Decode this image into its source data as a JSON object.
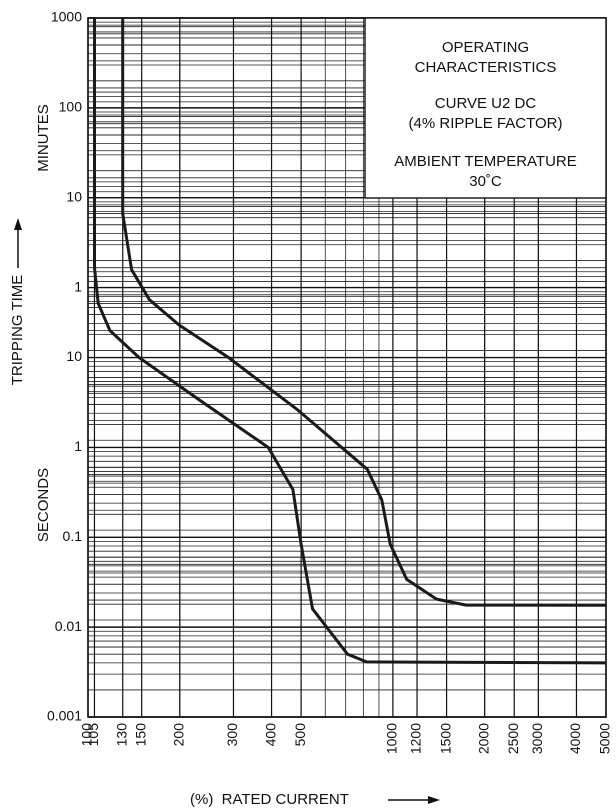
{
  "chart_data": {
    "type": "line",
    "x_log": true,
    "y_log": true,
    "grid": true,
    "minor_grid": true,
    "xlim": [
      100,
      5000
    ],
    "xticks": [
      100,
      105,
      130,
      150,
      200,
      300,
      400,
      500,
      1000,
      1200,
      1500,
      2000,
      2500,
      3000,
      4000,
      5000
    ],
    "ylim": [
      0.001,
      60000
    ],
    "yticks": [
      {
        "value": 60000,
        "label": "1000"
      },
      {
        "value": 6000,
        "label": "100"
      },
      {
        "value": 600,
        "label": "10"
      },
      {
        "value": 60,
        "label": "1"
      },
      10,
      1,
      0.1,
      0.01,
      0.001
    ],
    "x_label": "(%)  RATED CURRENT",
    "y_label_upper": "MINUTES",
    "y_label_middle": "TRIPPING TIME",
    "y_label_lower": "SECONDS",
    "annotations": [
      "OPERATING",
      "CHARACTERISTICS",
      "CURVE U2 DC",
      "(4% RIPPLE FACTOR)",
      "AMBIENT TEMPERATURE",
      "30˚C"
    ],
    "series": [
      {
        "color": "#1a1a1a",
        "x": [
          105,
          105,
          108,
          118,
          147,
          231,
          390,
          470,
          500,
          545,
          710,
          820,
          5000
        ],
        "values": [
          60000,
          100,
          40,
          20,
          10,
          3.4,
          1,
          0.34,
          0.084,
          0.016,
          0.005,
          0.0041,
          0.004
        ]
      },
      {
        "color": "#1a1a1a",
        "x": [
          130,
          130,
          139,
          159,
          199,
          289,
          488,
          824,
          920,
          980,
          1110,
          1390,
          1740,
          5000
        ],
        "values": [
          60000,
          400,
          95,
          44,
          23,
          10,
          2.6,
          0.57,
          0.26,
          0.084,
          0.034,
          0.0205,
          0.0176,
          0.0175
        ]
      }
    ]
  }
}
